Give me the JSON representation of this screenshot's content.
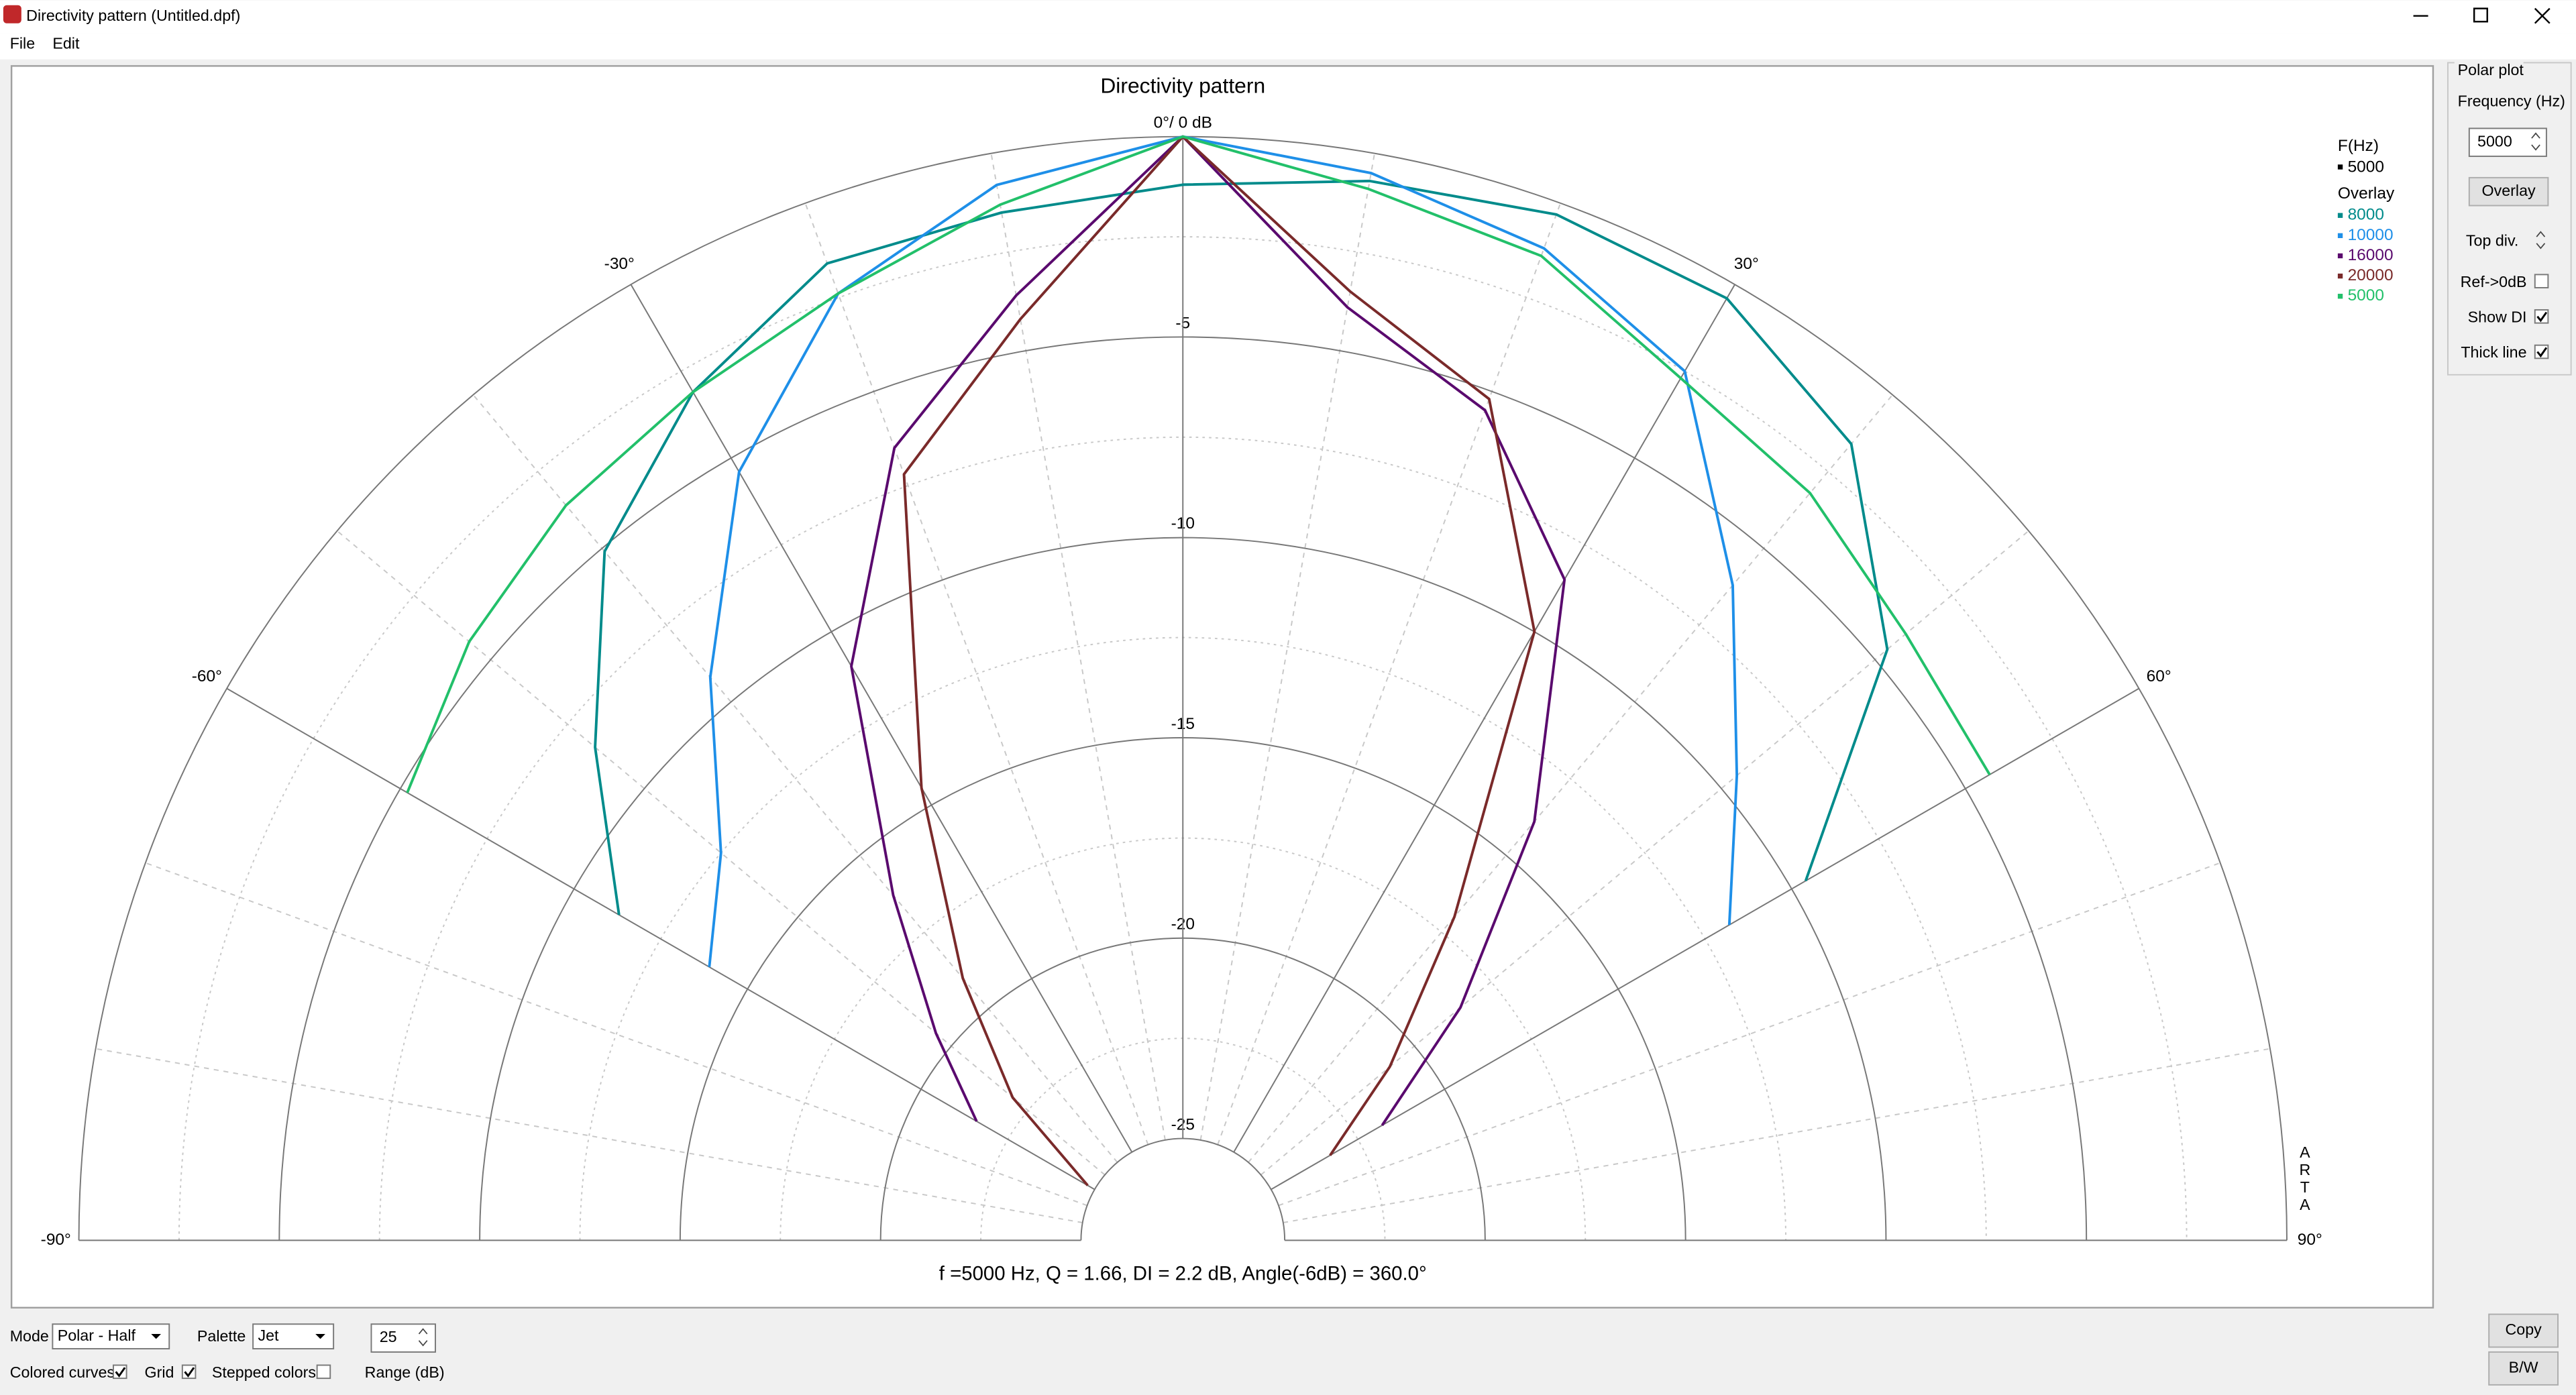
{
  "window": {
    "title": "Directivity pattern (Untitled.dpf)",
    "menu": [
      "File",
      "Edit"
    ]
  },
  "chart_data": {
    "type": "polar",
    "title": "Directivity pattern",
    "angles": [
      -60,
      -50,
      -40,
      -30,
      -20,
      -10,
      0,
      10,
      20,
      30,
      40,
      50,
      60
    ],
    "rlim": [
      -25,
      0
    ],
    "rticks": [
      {
        "value": 0,
        "label": "0°/ 0 dB"
      },
      -5,
      -10,
      -15,
      -20,
      -25
    ],
    "rticks_minor": [
      -2.5,
      -7.5,
      -12.5,
      -17.5,
      -22.5
    ],
    "aticks": [
      {
        "value": -90,
        "label": "-90°"
      },
      {
        "value": -60,
        "label": "-60°"
      },
      {
        "value": -30,
        "label": "-30°"
      },
      {
        "value": 30,
        "label": "30°"
      },
      {
        "value": 60,
        "label": "60°"
      },
      {
        "value": 90,
        "label": "90°"
      }
    ],
    "aticks_minor": [
      -80,
      -70,
      -50,
      -40,
      -20,
      -10,
      10,
      20,
      40,
      50,
      70,
      80
    ],
    "grid": true,
    "legend_title": "F(Hz)",
    "current": {
      "name": "5000",
      "color": "#000000"
    },
    "overlay_title": "Overlay",
    "series": [
      {
        "name": "8000",
        "color": "#008b8b",
        "values": [
          -11.3,
          -8.4,
          -5.1,
          -3.1,
          -1.6,
          -1.5,
          -1.2,
          -0.7,
          -0.3,
          -0.4,
          -1.6,
          -4.6,
          -9.6
        ]
      },
      {
        "name": "10000",
        "color": "#1e8fe8",
        "values": [
          -13.9,
          -12.5,
          -9.2,
          -5.4,
          -2.4,
          -0.8,
          0,
          -0.5,
          -1.2,
          -2.5,
          -6.2,
          -9.5,
          -11.8
        ]
      },
      {
        "name": "16000",
        "color": "#5a0a6e",
        "values": [
          -21.6,
          -19.5,
          -16.3,
          -11,
          -6.5,
          -3.6,
          0,
          -3.9,
          -5.5,
          -8.5,
          -13.9,
          -18.5,
          -21.8
        ]
      },
      {
        "name": "20000",
        "color": "#7a2a2a",
        "values": [
          -24.8,
          -22,
          -19,
          -14.5,
          -7.2,
          -4.2,
          0,
          -3.5,
          -5.2,
          -10,
          -17,
          -20.8,
          -23.3
        ]
      },
      {
        "name": "5000",
        "color": "#22c06a",
        "values": [
          -5.2,
          -4.3,
          -3.6,
          -3.1,
          -2.4,
          -1.3,
          0,
          -0.9,
          -1.4,
          -2.7,
          -3.2,
          -4.0,
          -4.3
        ]
      }
    ],
    "watermark": "ARTA",
    "footer": "f =5000 Hz,  Q =  1.66,  DI =   2.2 dB,  Angle(-6dB) = 360.0°"
  },
  "side_panel": {
    "group": "Polar plot",
    "frequency_label": "Frequency (Hz)",
    "frequency": 5000,
    "overlay_button": "Overlay",
    "top_div": "Top div.",
    "checks": [
      {
        "label": "Ref->0dB",
        "checked": false
      },
      {
        "label": "Show DI",
        "checked": true
      },
      {
        "label": "Thick line",
        "checked": true
      }
    ]
  },
  "bottom_bar": {
    "mode_label": "Mode",
    "mode": "Polar - Half",
    "palette_label": "Palette",
    "palette": "Jet",
    "range": 25,
    "range_label": "Range (dB)",
    "checks": [
      {
        "label": "Colored curves",
        "checked": true
      },
      {
        "label": "Grid",
        "checked": true
      },
      {
        "label": "Stepped colors",
        "checked": false
      }
    ],
    "buttons": [
      "Copy",
      "B/W"
    ]
  }
}
